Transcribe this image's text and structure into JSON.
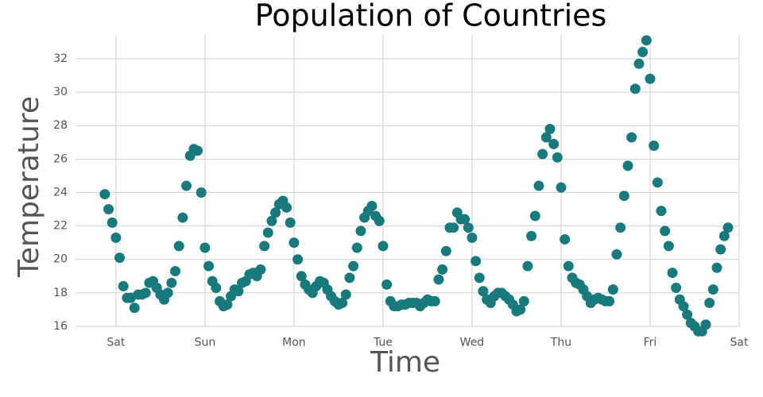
{
  "chart_data": {
    "type": "scatter",
    "title": "Population of Countries",
    "x_label": "Time",
    "y_label": "Temperature",
    "color": "#187a7c",
    "grid": true,
    "xlim": [
      -10.9,
      168
    ],
    "ylim": [
      15.5,
      33.4
    ],
    "xticks": [
      {
        "value": 0,
        "label": "Sat"
      },
      {
        "value": 24,
        "label": "Sun"
      },
      {
        "value": 48,
        "label": "Mon"
      },
      {
        "value": 72,
        "label": "Tue"
      },
      {
        "value": 96,
        "label": "Wed"
      },
      {
        "value": 120,
        "label": "Thu"
      },
      {
        "value": 144,
        "label": "Fri"
      },
      {
        "value": 168,
        "label": "Sat"
      }
    ],
    "yticks": [
      16,
      18,
      20,
      22,
      24,
      26,
      28,
      30,
      32
    ],
    "x": [
      -3,
      -2,
      -1,
      0,
      1,
      2,
      3,
      4,
      5,
      6,
      7,
      8,
      9,
      10,
      11,
      12,
      13,
      14,
      15,
      16,
      17,
      18,
      19,
      20,
      21,
      22,
      23,
      24,
      25,
      26,
      27,
      28,
      29,
      30,
      31,
      32,
      33,
      34,
      35,
      36,
      37,
      38,
      39,
      40,
      41,
      42,
      43,
      44,
      45,
      46,
      47,
      48,
      49,
      50,
      51,
      52,
      53,
      54,
      55,
      56,
      57,
      58,
      59,
      60,
      61,
      62,
      63,
      64,
      65,
      66,
      67,
      68,
      69,
      70,
      71,
      72,
      73,
      74,
      75,
      76,
      77,
      78,
      79,
      80,
      81,
      82,
      83,
      84,
      85,
      86,
      87,
      88,
      89,
      90,
      91,
      92,
      93,
      94,
      95,
      96,
      97,
      98,
      99,
      100,
      101,
      102,
      103,
      104,
      105,
      106,
      107,
      108,
      109,
      110,
      111,
      112,
      113,
      114,
      115,
      116,
      117,
      118,
      119,
      120,
      121,
      122,
      123,
      124,
      125,
      126,
      127,
      128,
      129,
      130,
      131,
      132,
      133,
      134,
      135,
      136,
      137,
      138,
      139,
      140,
      141,
      142,
      143,
      144,
      145,
      146,
      147,
      148,
      149,
      150,
      151,
      152,
      153,
      154,
      155,
      156,
      157,
      158,
      159,
      160,
      161,
      162,
      163,
      164,
      165
    ],
    "values": [
      23.9,
      23.0,
      22.2,
      21.3,
      20.1,
      18.4,
      17.7,
      17.7,
      17.1,
      17.9,
      17.9,
      18.0,
      18.6,
      18.7,
      18.3,
      17.9,
      17.6,
      18.0,
      18.6,
      19.3,
      20.8,
      22.5,
      24.4,
      26.2,
      26.6,
      26.5,
      24.0,
      20.7,
      19.6,
      18.7,
      18.3,
      17.5,
      17.2,
      17.3,
      17.8,
      18.2,
      18.1,
      18.6,
      18.7,
      19.1,
      19.2,
      19.0,
      19.4,
      20.8,
      21.6,
      22.3,
      22.8,
      23.3,
      23.5,
      23.1,
      22.2,
      21.0,
      20.0,
      19.0,
      18.5,
      18.2,
      18.0,
      18.4,
      18.7,
      18.6,
      18.2,
      17.8,
      17.5,
      17.3,
      17.4,
      17.9,
      18.9,
      19.6,
      20.7,
      21.7,
      22.5,
      22.9,
      23.2,
      22.6,
      22.3,
      20.8,
      18.5,
      17.5,
      17.2,
      17.2,
      17.3,
      17.3,
      17.4,
      17.4,
      17.4,
      17.2,
      17.4,
      17.6,
      17.5,
      17.5,
      18.8,
      19.4,
      20.5,
      21.9,
      21.9,
      22.8,
      22.4,
      22.4,
      21.9,
      21.3,
      19.9,
      18.9,
      18.1,
      17.6,
      17.4,
      17.8,
      18.0,
      18.0,
      17.8,
      17.6,
      17.3,
      16.9,
      17.0,
      17.5,
      19.6,
      21.4,
      22.6,
      24.4,
      26.3,
      27.3,
      27.8,
      26.9,
      26.1,
      24.3,
      21.2,
      19.6,
      18.9,
      18.6,
      18.5,
      18.2,
      17.8,
      17.4,
      17.6,
      17.7,
      17.6,
      17.5,
      17.5,
      18.2,
      20.3,
      21.9,
      23.8,
      25.6,
      27.3,
      30.2,
      31.7,
      32.4,
      33.1,
      30.8,
      26.8,
      24.6,
      22.9,
      21.7,
      20.8,
      19.2,
      18.3,
      17.6,
      17.2,
      16.7,
      16.2,
      16.0,
      15.7,
      15.7,
      16.1,
      17.4,
      18.2,
      19.5,
      20.6,
      21.4,
      21.9
    ]
  }
}
